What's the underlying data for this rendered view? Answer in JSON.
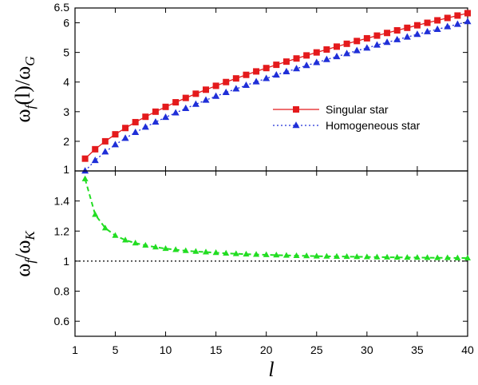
{
  "chart_data": [
    {
      "type": "line",
      "panel": "top",
      "ylabel": {
        "main": "ω",
        "sub1": "f",
        "mid": "(l)/ω",
        "sub2": "G"
      },
      "xlim": [
        1,
        40
      ],
      "ylim": [
        1,
        6.5
      ],
      "yticks": [
        1,
        2,
        3,
        4,
        5,
        6,
        6.5
      ],
      "grid": false,
      "legend_position": "center-right",
      "series": [
        {
          "name": "Singular star",
          "color": "#e41a1c",
          "line_style": "solid",
          "marker": "square",
          "x": [
            2,
            3,
            4,
            5,
            6,
            7,
            8,
            9,
            10,
            11,
            12,
            13,
            14,
            15,
            16,
            17,
            18,
            19,
            20,
            21,
            22,
            23,
            24,
            25,
            26,
            27,
            28,
            29,
            30,
            31,
            32,
            33,
            34,
            35,
            36,
            37,
            38,
            39,
            40
          ],
          "y": [
            1.414,
            1.732,
            2.0,
            2.236,
            2.449,
            2.646,
            2.828,
            3.0,
            3.162,
            3.317,
            3.464,
            3.606,
            3.742,
            3.873,
            4.0,
            4.123,
            4.243,
            4.359,
            4.472,
            4.583,
            4.69,
            4.796,
            4.899,
            5.0,
            5.099,
            5.196,
            5.292,
            5.385,
            5.477,
            5.568,
            5.657,
            5.745,
            5.831,
            5.916,
            6.0,
            6.083,
            6.164,
            6.245,
            6.325
          ]
        },
        {
          "name": "Homogeneous star",
          "color": "#1f2fd8",
          "line_style": "dotted",
          "marker": "triangle",
          "x": [
            2,
            3,
            4,
            5,
            6,
            7,
            8,
            9,
            10,
            11,
            12,
            13,
            14,
            15,
            16,
            17,
            18,
            19,
            20,
            21,
            22,
            23,
            24,
            25,
            26,
            27,
            28,
            29,
            30,
            31,
            32,
            33,
            34,
            35,
            36,
            37,
            38,
            39,
            40
          ],
          "y": [
            1.0,
            1.354,
            1.643,
            1.886,
            2.103,
            2.3,
            2.48,
            2.65,
            2.81,
            2.96,
            3.11,
            3.25,
            3.39,
            3.52,
            3.65,
            3.77,
            3.89,
            4.01,
            4.12,
            4.24,
            4.35,
            4.45,
            4.56,
            4.66,
            4.76,
            4.86,
            4.96,
            5.06,
            5.15,
            5.25,
            5.34,
            5.43,
            5.52,
            5.61,
            5.7,
            5.78,
            5.87,
            5.95,
            6.04
          ]
        }
      ]
    },
    {
      "type": "line",
      "panel": "bottom",
      "xlabel": "l",
      "ylabel": {
        "main": "ω",
        "sub1": "f",
        "mid": "/ω",
        "sub2": "K"
      },
      "xlim": [
        1,
        40
      ],
      "ylim": [
        0.5,
        1.6
      ],
      "xticks": [
        1,
        5,
        10,
        15,
        20,
        25,
        30,
        35,
        40
      ],
      "yticks": [
        0.6,
        0.8,
        1,
        1.2,
        1.4
      ],
      "grid": false,
      "reference_line": {
        "y": 1,
        "color": "#000000",
        "line_style": "dotted"
      },
      "series": [
        {
          "color": "#22dd22",
          "line_style": "dashed",
          "marker": "triangle",
          "x": [
            2,
            3,
            4,
            5,
            6,
            7,
            8,
            9,
            10,
            11,
            12,
            13,
            14,
            15,
            16,
            17,
            18,
            19,
            20,
            21,
            22,
            23,
            24,
            25,
            26,
            27,
            28,
            29,
            30,
            31,
            32,
            33,
            34,
            35,
            36,
            37,
            38,
            39,
            40
          ],
          "y": [
            1.547,
            1.31,
            1.22,
            1.17,
            1.14,
            1.12,
            1.105,
            1.093,
            1.083,
            1.076,
            1.069,
            1.064,
            1.06,
            1.056,
            1.052,
            1.049,
            1.046,
            1.044,
            1.042,
            1.04,
            1.038,
            1.036,
            1.035,
            1.033,
            1.032,
            1.031,
            1.03,
            1.029,
            1.028,
            1.027,
            1.026,
            1.025,
            1.024,
            1.024,
            1.023,
            1.022,
            1.022,
            1.021,
            1.02
          ]
        }
      ]
    }
  ]
}
